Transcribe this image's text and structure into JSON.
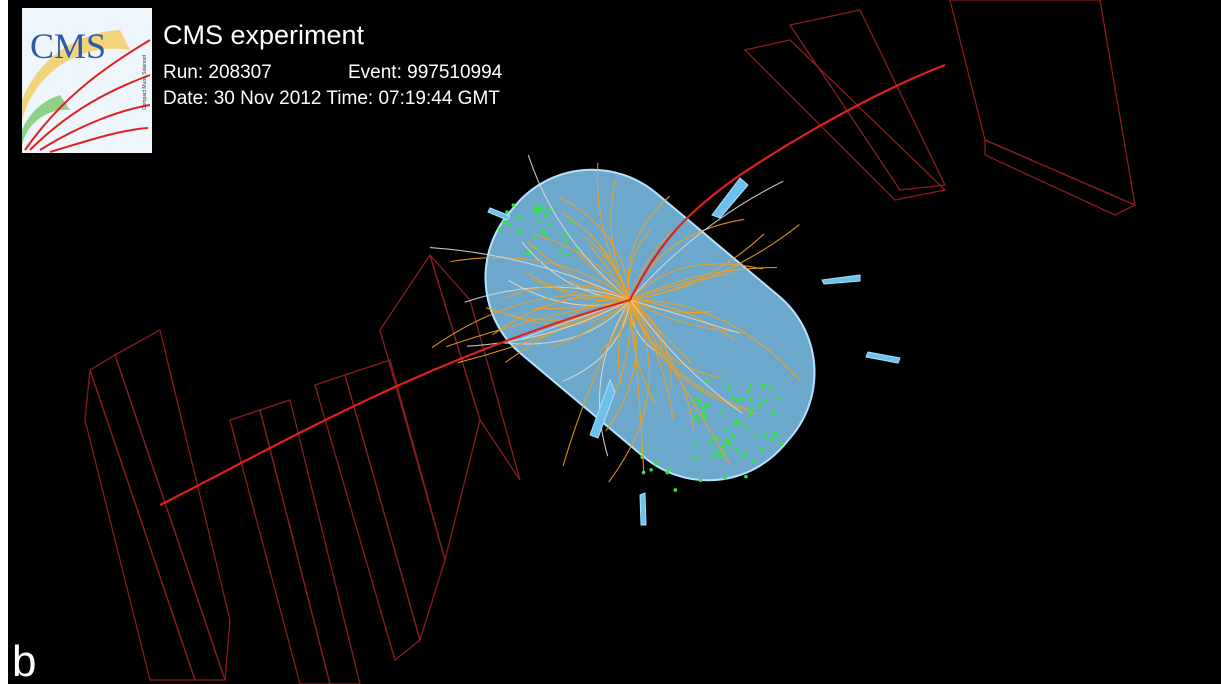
{
  "logo": {
    "text": "CMS",
    "subtitle": "Compact Muon Solenoid"
  },
  "header": {
    "title": "CMS experiment",
    "run": "Run: 208307",
    "event": "Event: 997510994",
    "date": "Date: 30 Nov 2012 Time: 07:19:44 GMT"
  },
  "panel_label": "b"
}
